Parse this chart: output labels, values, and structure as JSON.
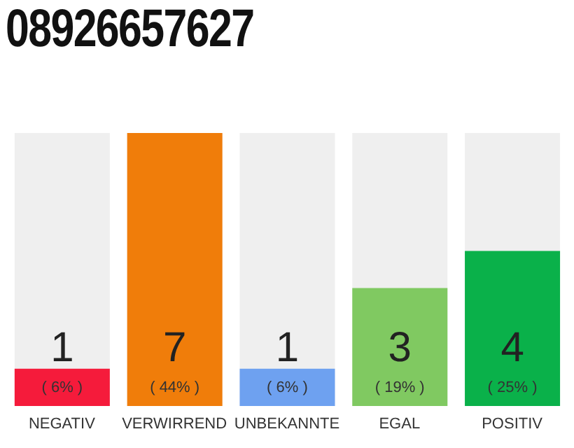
{
  "chart_data": {
    "type": "bar",
    "title": "08926657627",
    "categories": [
      "NEGATIV",
      "VERWIRREND",
      "UNBEKANNTE",
      "EGAL",
      "POSITIV"
    ],
    "values": [
      6,
      44,
      6,
      19,
      25
    ],
    "colors": [
      "#f51b3b",
      "#f07d0a",
      "#6ea1f0",
      "#80c961",
      "#0ab14a"
    ],
    "value_labels": [
      "( 6% )",
      "( 44% )",
      "( 6% )",
      "( 19% )",
      "( 25% )"
    ],
    "annotations": [
      "1",
      "7",
      "1",
      "3",
      "4"
    ],
    "grid": false,
    "legend": false
  }
}
